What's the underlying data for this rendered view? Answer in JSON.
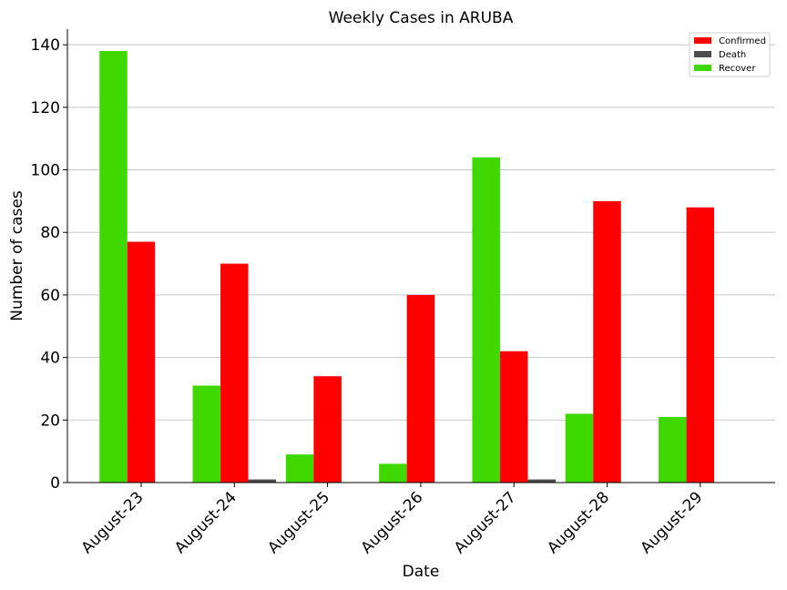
{
  "chart_data": {
    "type": "bar",
    "title": "Weekly Cases in ARUBA",
    "xlabel": "Date",
    "ylabel": "Number of cases",
    "categories": [
      "August-23",
      "August-24",
      "August-25",
      "August-26",
      "August-27",
      "August-28",
      "August-29"
    ],
    "ylim": [
      0,
      145
    ],
    "yticks": [
      0,
      20,
      40,
      60,
      80,
      100,
      120,
      140
    ],
    "grid": "horizontal",
    "legend_position": "top-right",
    "series": [
      {
        "name": "Recover",
        "color": "#3fd800",
        "values": [
          138,
          31,
          9,
          6,
          104,
          22,
          21
        ]
      },
      {
        "name": "Confirmed",
        "color": "#ff0000",
        "values": [
          77,
          70,
          34,
          60,
          42,
          90,
          88
        ]
      },
      {
        "name": "Death",
        "color": "#4d4d4d",
        "values": [
          0,
          1,
          0,
          0,
          1,
          0,
          0
        ]
      }
    ],
    "legend_order": [
      "Confirmed",
      "Death",
      "Recover"
    ]
  }
}
